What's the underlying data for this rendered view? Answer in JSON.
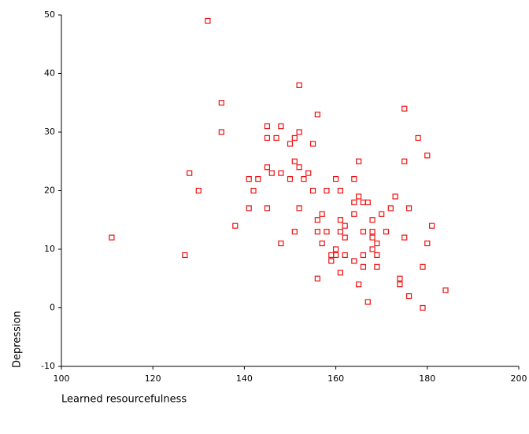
{
  "chart_data": {
    "type": "scatter",
    "x_label": "Learned resourcefulness",
    "y_label": "Depression",
    "color": "#ee1111",
    "xlim": [
      100,
      200
    ],
    "xticks": [
      100,
      120,
      140,
      160,
      180,
      200
    ],
    "ylim": [
      -10,
      50
    ],
    "yticks": [
      -10,
      0,
      10,
      20,
      30,
      40,
      50
    ],
    "x": [
      111,
      127,
      128,
      130,
      132,
      135,
      135,
      138,
      141,
      141,
      142,
      143,
      145,
      145,
      145,
      145,
      146,
      147,
      148,
      148,
      148,
      150,
      150,
      151,
      151,
      152,
      152,
      152,
      152,
      151,
      153,
      154,
      155,
      155,
      156,
      156,
      156,
      156,
      157,
      157,
      158,
      158,
      159,
      160,
      160,
      161,
      161,
      161,
      161,
      162,
      162,
      164,
      164,
      164,
      165,
      165,
      165,
      166,
      166,
      166,
      166,
      167,
      167,
      168,
      168,
      168,
      169,
      169,
      170,
      171,
      172,
      173,
      174,
      174,
      175,
      175,
      175,
      176,
      176,
      178,
      179,
      179,
      180,
      180,
      181,
      184,
      159,
      160,
      162,
      168,
      164,
      169
    ],
    "y": [
      12,
      9,
      23,
      20,
      49,
      35,
      30,
      14,
      22,
      17,
      20,
      22,
      31,
      29,
      24,
      17,
      23,
      29,
      31,
      23,
      11,
      28,
      22,
      29,
      25,
      30,
      24,
      17,
      38,
      13,
      22,
      23,
      20,
      28,
      33,
      15,
      13,
      5,
      16,
      11,
      20,
      13,
      9,
      22,
      9,
      20,
      15,
      13,
      6,
      14,
      9,
      22,
      18,
      16,
      19,
      25,
      4,
      18,
      13,
      9,
      7,
      18,
      1,
      15,
      13,
      10,
      11,
      9,
      16,
      13,
      17,
      19,
      5,
      4,
      34,
      25,
      12,
      17,
      2,
      29,
      7,
      0,
      11,
      26,
      14,
      3,
      8,
      10,
      12,
      12,
      8,
      7
    ]
  }
}
